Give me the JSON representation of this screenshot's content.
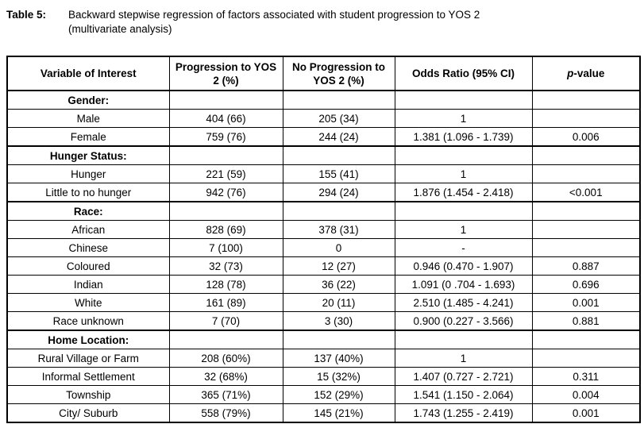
{
  "header": {
    "table_label": "Table 5:",
    "caption_line1": "Backward stepwise regression of factors associated with student progression to YOS 2",
    "caption_line2": "(multivariate analysis)"
  },
  "table": {
    "columns": [
      "Variable of Interest",
      "Progression to YOS 2 (%)",
      "No Progression to YOS 2 (%)",
      "Odds Ratio (95% CI)"
    ],
    "p_value_header": {
      "italic": "p",
      "rest": "-value"
    },
    "rows": [
      {
        "type": "section",
        "label": "Gender:"
      },
      {
        "type": "data",
        "label": "Male",
        "progression": "404 (66)",
        "no_progression": "205 (34)",
        "odds_ratio": "1",
        "p_value": ""
      },
      {
        "type": "data",
        "label": "Female",
        "progression": "759 (76)",
        "no_progression": "244 (24)",
        "odds_ratio": "1.381 (1.096 - 1.739)",
        "p_value": "0.006"
      },
      {
        "type": "section",
        "label": "Hunger Status:"
      },
      {
        "type": "data",
        "label": "Hunger",
        "progression": "221 (59)",
        "no_progression": "155 (41)",
        "odds_ratio": "1",
        "p_value": ""
      },
      {
        "type": "data",
        "label": "Little to no hunger",
        "progression": "942 (76)",
        "no_progression": "294 (24)",
        "odds_ratio": "1.876 (1.454 - 2.418)",
        "p_value": "<0.001"
      },
      {
        "type": "section",
        "label": "Race:"
      },
      {
        "type": "data",
        "label": "African",
        "progression": "828 (69)",
        "no_progression": "378 (31)",
        "odds_ratio": "1",
        "p_value": ""
      },
      {
        "type": "data",
        "label": "Chinese",
        "progression": "7 (100)",
        "no_progression": "0",
        "odds_ratio": "-",
        "p_value": ""
      },
      {
        "type": "data",
        "label": "Coloured",
        "progression": "32 (73)",
        "no_progression": "12 (27)",
        "odds_ratio": "0.946 (0.470 - 1.907)",
        "p_value": "0.887"
      },
      {
        "type": "data",
        "label": "Indian",
        "progression": "128 (78)",
        "no_progression": "36 (22)",
        "odds_ratio": "1.091 (0 .704 - 1.693)",
        "p_value": "0.696"
      },
      {
        "type": "data",
        "label": "White",
        "progression": "161 (89)",
        "no_progression": "20 (11)",
        "odds_ratio": "2.510 (1.485 - 4.241)",
        "p_value": "0.001"
      },
      {
        "type": "data",
        "label": "Race unknown",
        "progression": "7 (70)",
        "no_progression": "3 (30)",
        "odds_ratio": "0.900 (0.227 - 3.566)",
        "p_value": "0.881"
      },
      {
        "type": "section",
        "label": "Home Location:"
      },
      {
        "type": "data",
        "label": "Rural Village or Farm",
        "progression": "208 (60%)",
        "no_progression": "137 (40%)",
        "odds_ratio": "1",
        "p_value": ""
      },
      {
        "type": "data",
        "label": "Informal Settlement",
        "progression": "32 (68%)",
        "no_progression": "15 (32%)",
        "odds_ratio": "1.407 (0.727 - 2.721)",
        "p_value": "0.311"
      },
      {
        "type": "data",
        "label": "Township",
        "progression": "365 (71%)",
        "no_progression": "152 (29%)",
        "odds_ratio": "1.541 (1.150 - 2.064)",
        "p_value": "0.004"
      },
      {
        "type": "data",
        "label": "City/ Suburb",
        "progression": "558 (79%)",
        "no_progression": "145 (21%)",
        "odds_ratio": "1.743 (1.255 - 2.419)",
        "p_value": "0.001"
      }
    ]
  }
}
